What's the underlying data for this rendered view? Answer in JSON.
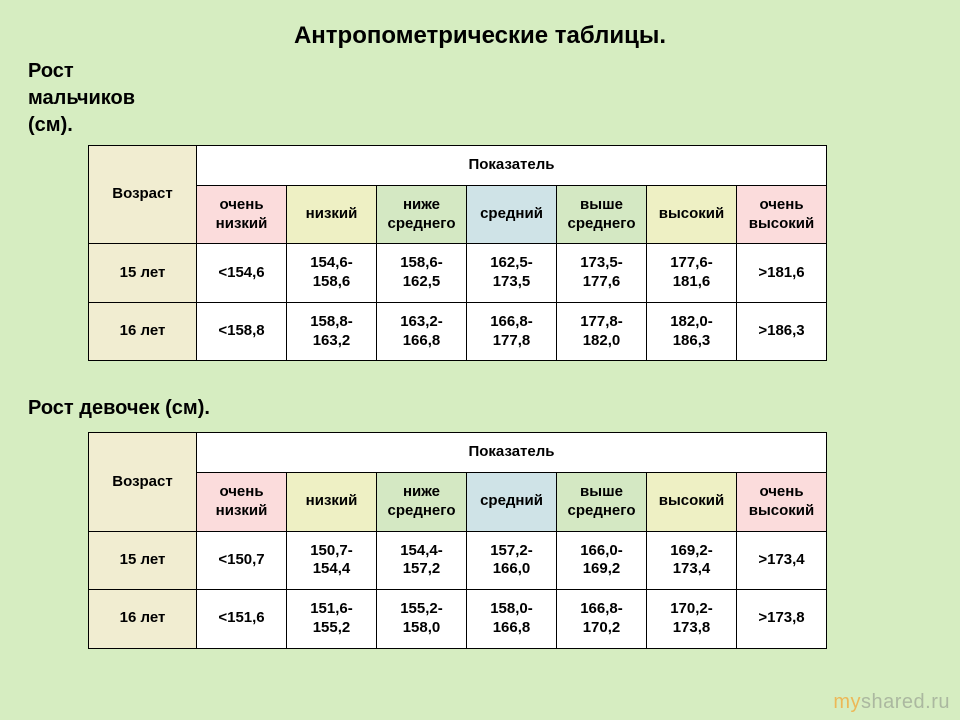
{
  "title": "Антропометрические таблицы.",
  "subtitle_boys": "Рост\nмальчиков\n(см).",
  "subtitle_girls": "Рост девочек (см).",
  "headers": {
    "age": "Возраст",
    "indicator": "Показатель",
    "levels": [
      "очень низкий",
      "низкий",
      "ниже среднего",
      "средний",
      "выше среднего",
      "высокий",
      "очень высокий"
    ]
  },
  "colors": {
    "age_bg": "#f1edd1",
    "very_low": "#fbdcdc",
    "low": "#eef0c4",
    "below_avg": "#d4e8c3",
    "avg": "#cfe3e7",
    "above_avg": "#d4e8c3",
    "high": "#eef0c4",
    "very_high": "#fbdcdc",
    "data_bg": "#ffffff",
    "header_bg": "#ffffff"
  },
  "boys": {
    "rows": [
      {
        "age": "15 лет",
        "cells": [
          "<154,6",
          "154,6-158,6",
          "158,6-162,5",
          "162,5-173,5",
          "173,5-177,6",
          "177,6-181,6",
          ">181,6"
        ]
      },
      {
        "age": "16 лет",
        "cells": [
          "<158,8",
          "158,8-163,2",
          "163,2-166,8",
          "166,8-177,8",
          "177,8-182,0",
          "182,0-186,3",
          ">186,3"
        ]
      }
    ]
  },
  "girls": {
    "rows": [
      {
        "age": "15 лет",
        "cells": [
          "<150,7",
          "150,7-154,4",
          "154,4-157,2",
          "157,2-166,0",
          "166,0-169,2",
          "169,2-173,4",
          ">173,4"
        ]
      },
      {
        "age": "16 лет",
        "cells": [
          "<151,6",
          "151,6-155,2",
          "155,2-158,0",
          "158,0-166,8",
          "166,8-170,2",
          "170,2-173,8",
          ">173,8"
        ]
      }
    ]
  },
  "watermark": {
    "prefix": "my",
    "rest": "shared.ru"
  },
  "layout": {
    "cell_range_wrap": true
  }
}
